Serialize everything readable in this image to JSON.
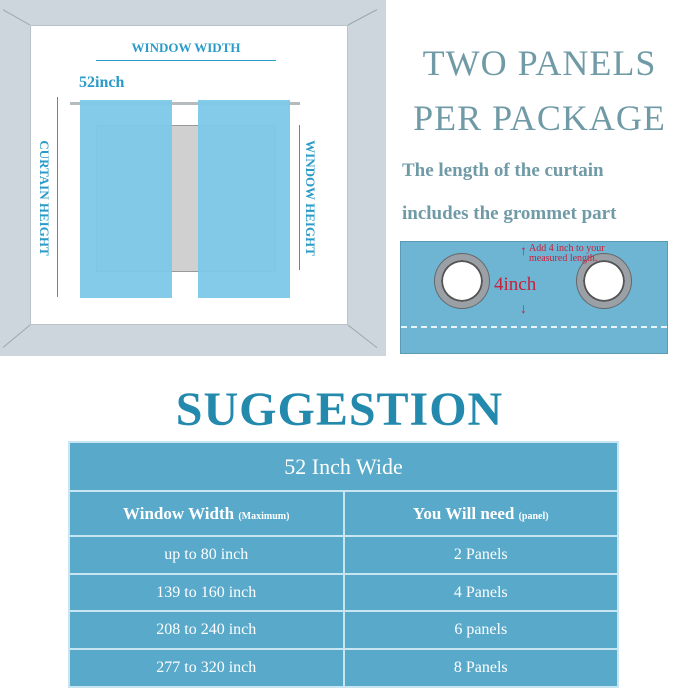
{
  "diagram": {
    "window_width": "WINDOW WIDTH",
    "curtain_width": "52inch",
    "curtain_height": "CURTAIN HEIGHT",
    "window_height": "WINDOW HEIGHT"
  },
  "package": {
    "line1": "TWO PANELS",
    "line2": "PER PACKAGE",
    "note1": "The length of the curtain",
    "note2": "includes the grommet  part"
  },
  "grommet": {
    "add_note": "Add 4 inch to your measured length.",
    "measure": "4inch"
  },
  "suggestion": {
    "title": "SUGGESTION",
    "table_title": "52 Inch Wide",
    "headers": [
      {
        "main": "Window Width",
        "sub": "(Maximum)"
      },
      {
        "main": "You Will need",
        "sub": "(panel)"
      }
    ],
    "rows": [
      [
        "up to 80 inch",
        "2 Panels"
      ],
      [
        "139 to 160 inch",
        "4 Panels"
      ],
      [
        "208 to 240 inch",
        "6 panels"
      ],
      [
        "277 to 320 inch",
        "8 Panels"
      ]
    ]
  },
  "colors": {
    "table": "#58a9ca",
    "title": "#2389ad",
    "label": "#2a9bc9",
    "curtain": "#7cc8e8",
    "note_red": "#c8203a"
  }
}
